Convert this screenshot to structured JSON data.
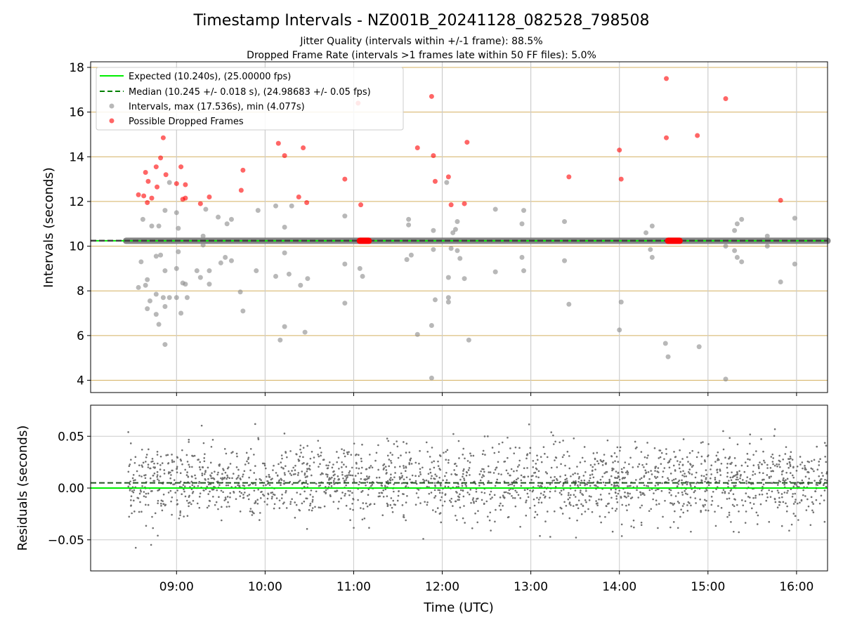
{
  "figure": {
    "title": "Timestamp Intervals - NZ001B_20241128_082528_798508",
    "subtitle_1": "Jitter Quality (intervals within +/-1 frame): 88.5%",
    "subtitle_2": "Dropped Frame Rate (intervals >1 frames late within 50 FF files): 5.0%",
    "xlabel": "Time (UTC)"
  },
  "colors": {
    "expected": "#00ee00",
    "median": "#008000",
    "intervals": "#888888",
    "dropped": "#ff0000",
    "hgrid_top": "#d4b060",
    "vgrid": "#cccccc",
    "residual_points": "#707070"
  },
  "chart_data": [
    {
      "type": "scatter",
      "ylabel": "Intervals (seconds)",
      "xlim": [
        8.03,
        16.35
      ],
      "ylim": [
        3.45,
        18.25
      ],
      "x_ticks": [
        9,
        10,
        11,
        12,
        13,
        14,
        15,
        16
      ],
      "x_tick_labels": [
        "09:00",
        "10:00",
        "11:00",
        "12:00",
        "13:00",
        "14:00",
        "15:00",
        "16:00"
      ],
      "y_ticks": [
        4,
        6,
        8,
        10,
        12,
        14,
        16,
        18
      ],
      "y_tick_labels": [
        "4",
        "6",
        "8",
        "10",
        "12",
        "14",
        "16",
        "18"
      ],
      "grid": "on",
      "legend_placement": "top-left",
      "expected_value": 10.24,
      "median_value": 10.245,
      "baseline_band": {
        "x_start": 8.43,
        "x_end": 16.35,
        "value": 10.24
      },
      "dropped_clusters": [
        {
          "x_start": 11.07,
          "x_end": 11.17,
          "value": 10.24
        },
        {
          "x_start": 14.55,
          "x_end": 14.68,
          "value": 10.24
        }
      ],
      "series": [
        {
          "name": "Expected (10.240s), (25.00000 fps)",
          "style": "solid-line",
          "color_key": "expected"
        },
        {
          "name": "Median (10.245 +/- 0.018 s), (24.98683 +/- 0.05 fps)",
          "style": "dashed-line",
          "color_key": "median"
        },
        {
          "name": "Intervals, max (17.536s), min (4.077s)",
          "style": "points",
          "color_key": "intervals",
          "points": [
            [
              8.57,
              8.15
            ],
            [
              8.6,
              9.3
            ],
            [
              8.62,
              11.2
            ],
            [
              8.65,
              8.25
            ],
            [
              8.67,
              8.5
            ],
            [
              8.67,
              7.2
            ],
            [
              8.7,
              7.55
            ],
            [
              8.72,
              10.9
            ],
            [
              8.77,
              6.95
            ],
            [
              8.77,
              7.85
            ],
            [
              8.77,
              9.55
            ],
            [
              8.8,
              10.9
            ],
            [
              8.8,
              6.5
            ],
            [
              8.82,
              9.6
            ],
            [
              8.85,
              7.7
            ],
            [
              8.87,
              8.9
            ],
            [
              8.87,
              7.3
            ],
            [
              8.87,
              5.6
            ],
            [
              8.87,
              11.6
            ],
            [
              8.92,
              7.7
            ],
            [
              8.92,
              12.85
            ],
            [
              9.0,
              9.0
            ],
            [
              9.0,
              11.5
            ],
            [
              9.0,
              7.7
            ],
            [
              9.02,
              9.75
            ],
            [
              9.02,
              10.8
            ],
            [
              9.05,
              7.0
            ],
            [
              9.07,
              8.35
            ],
            [
              9.1,
              8.3
            ],
            [
              9.12,
              7.7
            ],
            [
              9.23,
              8.9
            ],
            [
              9.27,
              8.6
            ],
            [
              9.3,
              10.05
            ],
            [
              9.3,
              10.45
            ],
            [
              9.33,
              11.65
            ],
            [
              9.37,
              8.3
            ],
            [
              9.37,
              8.9
            ],
            [
              9.47,
              11.3
            ],
            [
              9.5,
              9.25
            ],
            [
              9.55,
              9.5
            ],
            [
              9.57,
              11.0
            ],
            [
              9.62,
              9.35
            ],
            [
              9.62,
              11.2
            ],
            [
              9.72,
              7.95
            ],
            [
              9.75,
              7.1
            ],
            [
              9.9,
              8.9
            ],
            [
              9.92,
              11.6
            ],
            [
              10.12,
              8.65
            ],
            [
              10.12,
              11.8
            ],
            [
              10.17,
              5.8
            ],
            [
              10.22,
              6.4
            ],
            [
              10.22,
              10.85
            ],
            [
              10.22,
              9.7
            ],
            [
              10.27,
              8.75
            ],
            [
              10.3,
              11.8
            ],
            [
              10.4,
              8.25
            ],
            [
              10.45,
              6.15
            ],
            [
              10.48,
              8.55
            ],
            [
              10.9,
              7.45
            ],
            [
              10.9,
              9.2
            ],
            [
              10.9,
              11.35
            ],
            [
              11.07,
              9.0
            ],
            [
              11.1,
              8.65
            ],
            [
              11.6,
              9.4
            ],
            [
              11.62,
              11.2
            ],
            [
              11.62,
              10.95
            ],
            [
              11.65,
              9.6
            ],
            [
              11.72,
              6.05
            ],
            [
              11.88,
              4.1
            ],
            [
              11.88,
              6.45
            ],
            [
              11.9,
              9.85
            ],
            [
              11.9,
              10.7
            ],
            [
              11.92,
              7.6
            ],
            [
              12.05,
              12.85
            ],
            [
              12.07,
              7.7
            ],
            [
              12.07,
              7.5
            ],
            [
              12.07,
              8.6
            ],
            [
              12.1,
              9.9
            ],
            [
              12.12,
              10.6
            ],
            [
              12.15,
              10.75
            ],
            [
              12.17,
              9.8
            ],
            [
              12.17,
              11.1
            ],
            [
              12.2,
              9.45
            ],
            [
              12.25,
              8.55
            ],
            [
              12.3,
              5.8
            ],
            [
              12.6,
              11.65
            ],
            [
              12.6,
              8.85
            ],
            [
              12.9,
              11.0
            ],
            [
              12.9,
              9.5
            ],
            [
              12.92,
              11.6
            ],
            [
              12.92,
              8.9
            ],
            [
              13.38,
              11.1
            ],
            [
              13.38,
              9.35
            ],
            [
              13.43,
              7.4
            ],
            [
              14.0,
              6.25
            ],
            [
              14.02,
              7.5
            ],
            [
              14.3,
              10.6
            ],
            [
              14.35,
              9.85
            ],
            [
              14.37,
              10.9
            ],
            [
              14.37,
              9.5
            ],
            [
              14.52,
              5.65
            ],
            [
              14.55,
              5.05
            ],
            [
              14.9,
              5.5
            ],
            [
              15.2,
              10.0
            ],
            [
              15.2,
              4.05
            ],
            [
              15.3,
              9.8
            ],
            [
              15.3,
              10.7
            ],
            [
              15.33,
              9.5
            ],
            [
              15.33,
              11.0
            ],
            [
              15.38,
              9.3
            ],
            [
              15.38,
              11.2
            ],
            [
              15.67,
              10.0
            ],
            [
              15.67,
              10.45
            ],
            [
              15.82,
              8.4
            ],
            [
              15.98,
              11.25
            ],
            [
              15.98,
              9.2
            ]
          ]
        },
        {
          "name": "Possible Dropped Frames",
          "style": "points",
          "color_key": "dropped",
          "points": [
            [
              8.57,
              12.3
            ],
            [
              8.63,
              12.25
            ],
            [
              8.65,
              13.3
            ],
            [
              8.67,
              11.95
            ],
            [
              8.68,
              12.9
            ],
            [
              8.72,
              12.15
            ],
            [
              8.77,
              13.55
            ],
            [
              8.78,
              12.65
            ],
            [
              8.82,
              13.95
            ],
            [
              8.85,
              14.85
            ],
            [
              8.88,
              13.2
            ],
            [
              9.0,
              12.8
            ],
            [
              9.05,
              13.55
            ],
            [
              9.07,
              12.1
            ],
            [
              9.1,
              12.15
            ],
            [
              9.1,
              12.75
            ],
            [
              9.27,
              11.9
            ],
            [
              9.37,
              12.2
            ],
            [
              9.73,
              12.5
            ],
            [
              9.75,
              13.4
            ],
            [
              10.15,
              14.6
            ],
            [
              10.22,
              14.05
            ],
            [
              10.38,
              12.2
            ],
            [
              10.43,
              14.4
            ],
            [
              10.47,
              11.95
            ],
            [
              10.9,
              13.0
            ],
            [
              11.05,
              16.4
            ],
            [
              11.08,
              11.85
            ],
            [
              11.72,
              14.4
            ],
            [
              11.88,
              16.7
            ],
            [
              11.9,
              14.05
            ],
            [
              11.92,
              12.9
            ],
            [
              12.07,
              13.1
            ],
            [
              12.1,
              11.85
            ],
            [
              12.25,
              11.9
            ],
            [
              12.28,
              14.65
            ],
            [
              13.43,
              13.1
            ],
            [
              14.0,
              14.3
            ],
            [
              14.02,
              13.0
            ],
            [
              14.53,
              17.5
            ],
            [
              14.53,
              14.85
            ],
            [
              14.88,
              14.95
            ],
            [
              15.2,
              16.6
            ],
            [
              15.82,
              12.05
            ]
          ]
        }
      ]
    },
    {
      "type": "scatter",
      "ylabel": "Residuals (seconds)",
      "xlim": [
        8.03,
        16.35
      ],
      "ylim": [
        -0.08,
        0.08
      ],
      "x_ticks": [
        9,
        10,
        11,
        12,
        13,
        14,
        15,
        16
      ],
      "x_tick_labels": [
        "09:00",
        "10:00",
        "11:00",
        "12:00",
        "13:00",
        "14:00",
        "15:00",
        "16:00"
      ],
      "y_ticks": [
        -0.05,
        0.0,
        0.05
      ],
      "y_tick_labels": [
        "−0.05",
        "0.00",
        "0.05"
      ],
      "grid": "on",
      "zero_value": 0.0,
      "median_offset": 0.005,
      "residual_spread": {
        "x_start": 8.45,
        "x_end": 16.35,
        "sigma": 0.018
      }
    }
  ]
}
